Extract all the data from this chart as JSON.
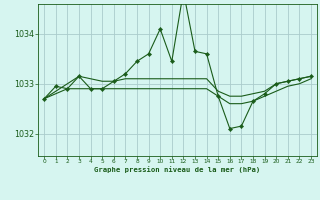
{
  "title": "Graphe pression niveau de la mer (hPa)",
  "background_color": "#cceedd",
  "plot_bg_color": "#d6f5f0",
  "line_color": "#1a5c1a",
  "grid_color_major": "#aacccc",
  "grid_color_minor": "#c8e8e4",
  "y_ticks": [
    1032,
    1033,
    1034
  ],
  "x_ticks": [
    0,
    1,
    2,
    3,
    4,
    5,
    6,
    7,
    8,
    9,
    10,
    11,
    12,
    13,
    14,
    15,
    16,
    17,
    18,
    19,
    20,
    21,
    22,
    23
  ],
  "xlim": [
    -0.5,
    23.5
  ],
  "ylim": [
    1031.55,
    1034.6
  ],
  "series_main": {
    "x": [
      0,
      1,
      2,
      3,
      4,
      5,
      6,
      7,
      8,
      9,
      10,
      11,
      12,
      13,
      14,
      15,
      16,
      17,
      18,
      19,
      20,
      21,
      22,
      23
    ],
    "y": [
      1032.7,
      1032.95,
      1032.9,
      1033.15,
      1032.9,
      1032.9,
      1033.05,
      1033.2,
      1033.45,
      1033.6,
      1034.1,
      1033.45,
      1034.85,
      1033.65,
      1033.6,
      1032.75,
      1032.1,
      1032.15,
      1032.65,
      1032.8,
      1033.0,
      1033.05,
      1033.1,
      1033.15
    ]
  },
  "series_flat1": {
    "x": [
      0,
      3,
      4,
      5,
      6,
      7,
      8,
      9,
      10,
      11,
      12,
      13,
      14,
      15,
      16,
      17,
      18,
      19,
      20,
      21,
      22,
      23
    ],
    "y": [
      1032.7,
      1033.15,
      1033.1,
      1033.05,
      1033.05,
      1033.1,
      1033.1,
      1033.1,
      1033.1,
      1033.1,
      1033.1,
      1033.1,
      1033.1,
      1032.85,
      1032.75,
      1032.75,
      1032.8,
      1032.85,
      1033.0,
      1033.05,
      1033.1,
      1033.15
    ]
  },
  "series_flat2": {
    "x": [
      0,
      2,
      3,
      4,
      5,
      6,
      7,
      8,
      9,
      10,
      11,
      12,
      13,
      14,
      15,
      16,
      17,
      18,
      19,
      20,
      21,
      22,
      23
    ],
    "y": [
      1032.7,
      1032.9,
      1032.9,
      1032.9,
      1032.9,
      1032.9,
      1032.9,
      1032.9,
      1032.9,
      1032.9,
      1032.9,
      1032.9,
      1032.9,
      1032.9,
      1032.75,
      1032.6,
      1032.6,
      1032.65,
      1032.75,
      1032.85,
      1032.95,
      1033.0,
      1033.1
    ]
  }
}
